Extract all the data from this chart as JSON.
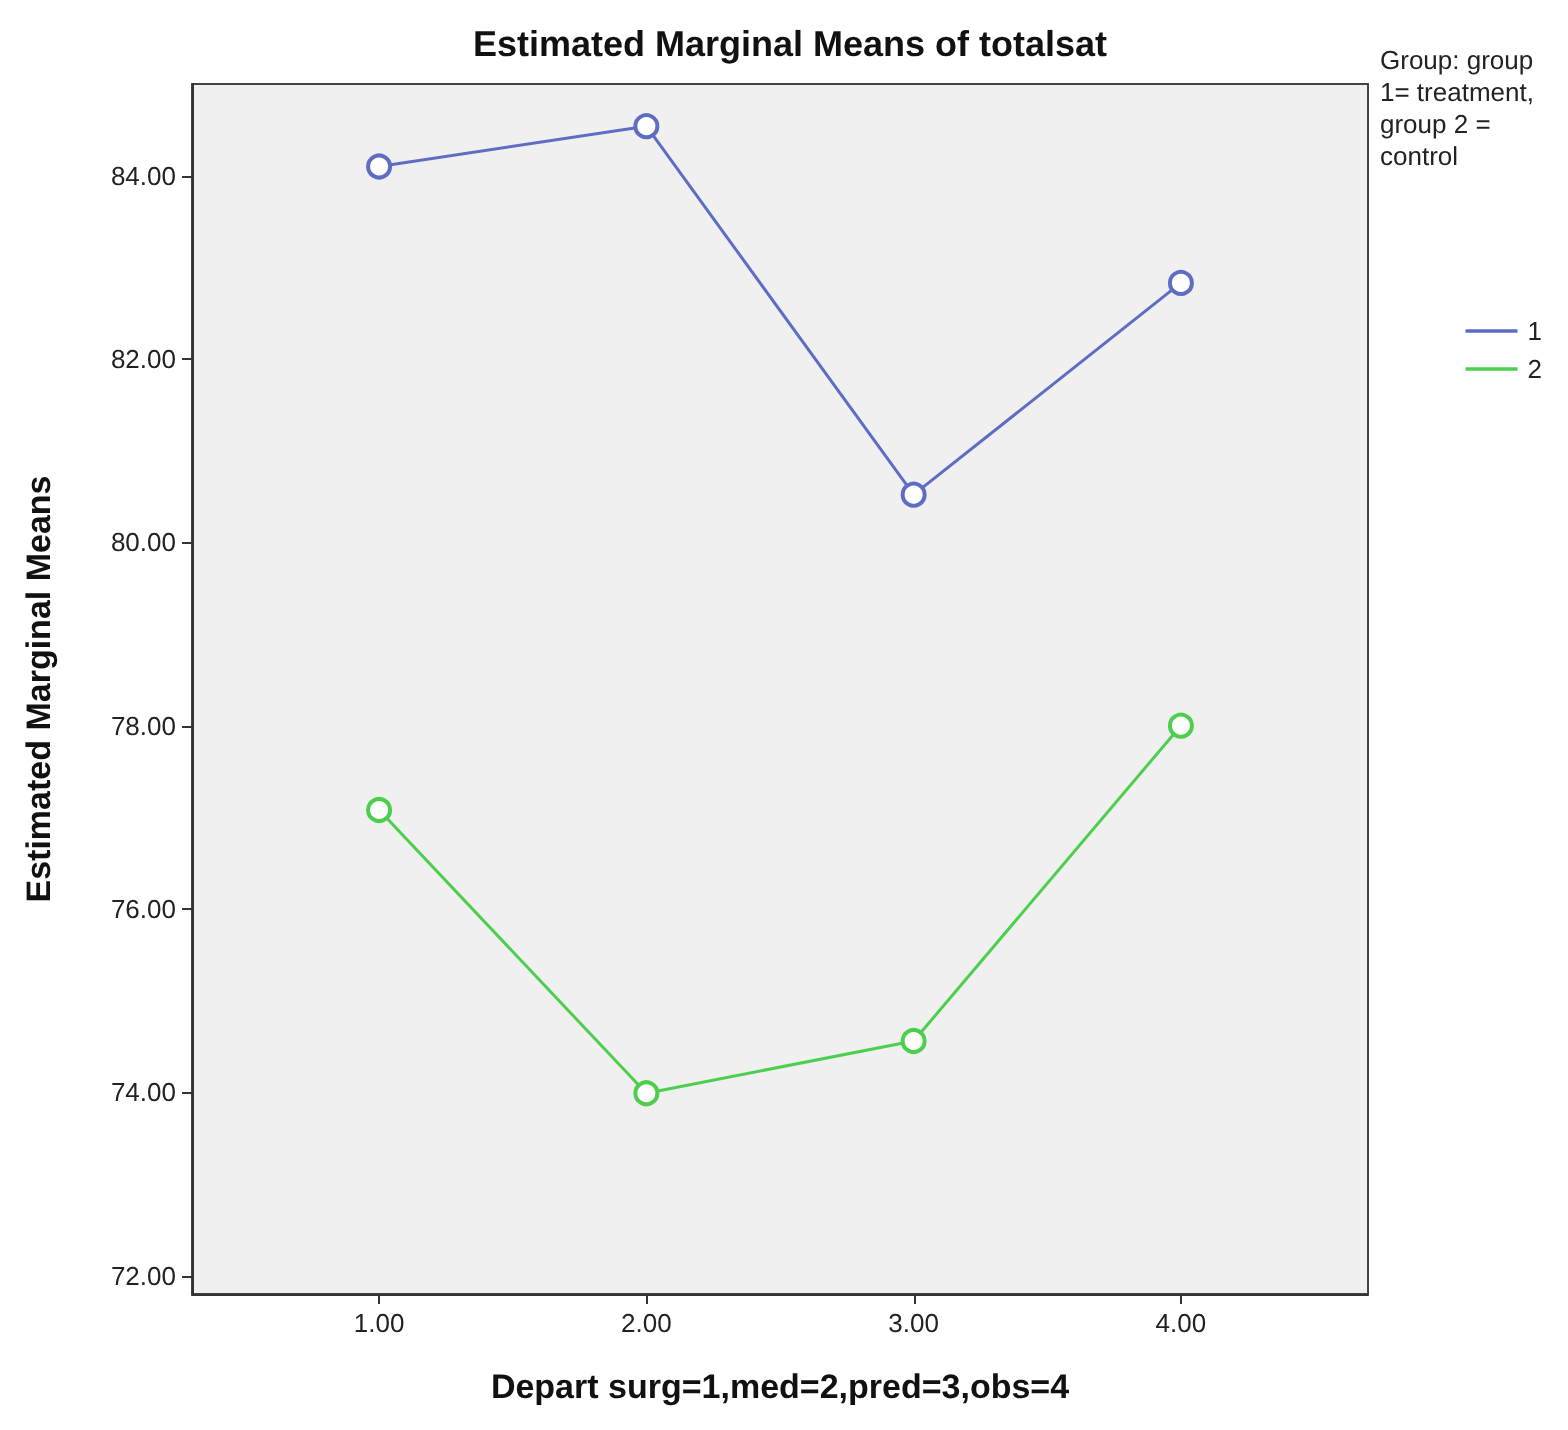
{
  "chart_data": {
    "type": "line",
    "title": "Estimated Marginal Means of totalsat",
    "xlabel": "Depart surg=1,med=2,pred=3,obs=4",
    "ylabel": "Estimated Marginal Means",
    "legend_title": "Group: group 1= treatment, group 2 = control",
    "x": [
      1,
      2,
      3,
      4
    ],
    "series": [
      {
        "name": "1",
        "color": "#5e6dc4",
        "values": [
          84.1,
          84.54,
          80.52,
          82.83
        ]
      },
      {
        "name": "2",
        "color": "#4ccf4c",
        "values": [
          77.08,
          73.99,
          74.56,
          78.0
        ]
      }
    ],
    "xlim": [
      0.3,
      4.7
    ],
    "xticks": [
      {
        "value": 1,
        "label": "1.00"
      },
      {
        "value": 2,
        "label": "2.00"
      },
      {
        "value": 3,
        "label": "3.00"
      },
      {
        "value": 4,
        "label": "4.00"
      }
    ],
    "ylim": [
      71.8,
      85
    ],
    "yticks": [
      {
        "value": 72,
        "label": "72.00"
      },
      {
        "value": 74,
        "label": "74.00"
      },
      {
        "value": 76,
        "label": "76.00"
      },
      {
        "value": 78,
        "label": "78.00"
      },
      {
        "value": 80,
        "label": "80.00"
      },
      {
        "value": 82,
        "label": "82.00"
      },
      {
        "value": 84,
        "label": "84.00"
      }
    ],
    "grid": false,
    "legend": "right",
    "marker": "circle",
    "line_style": "solid"
  }
}
